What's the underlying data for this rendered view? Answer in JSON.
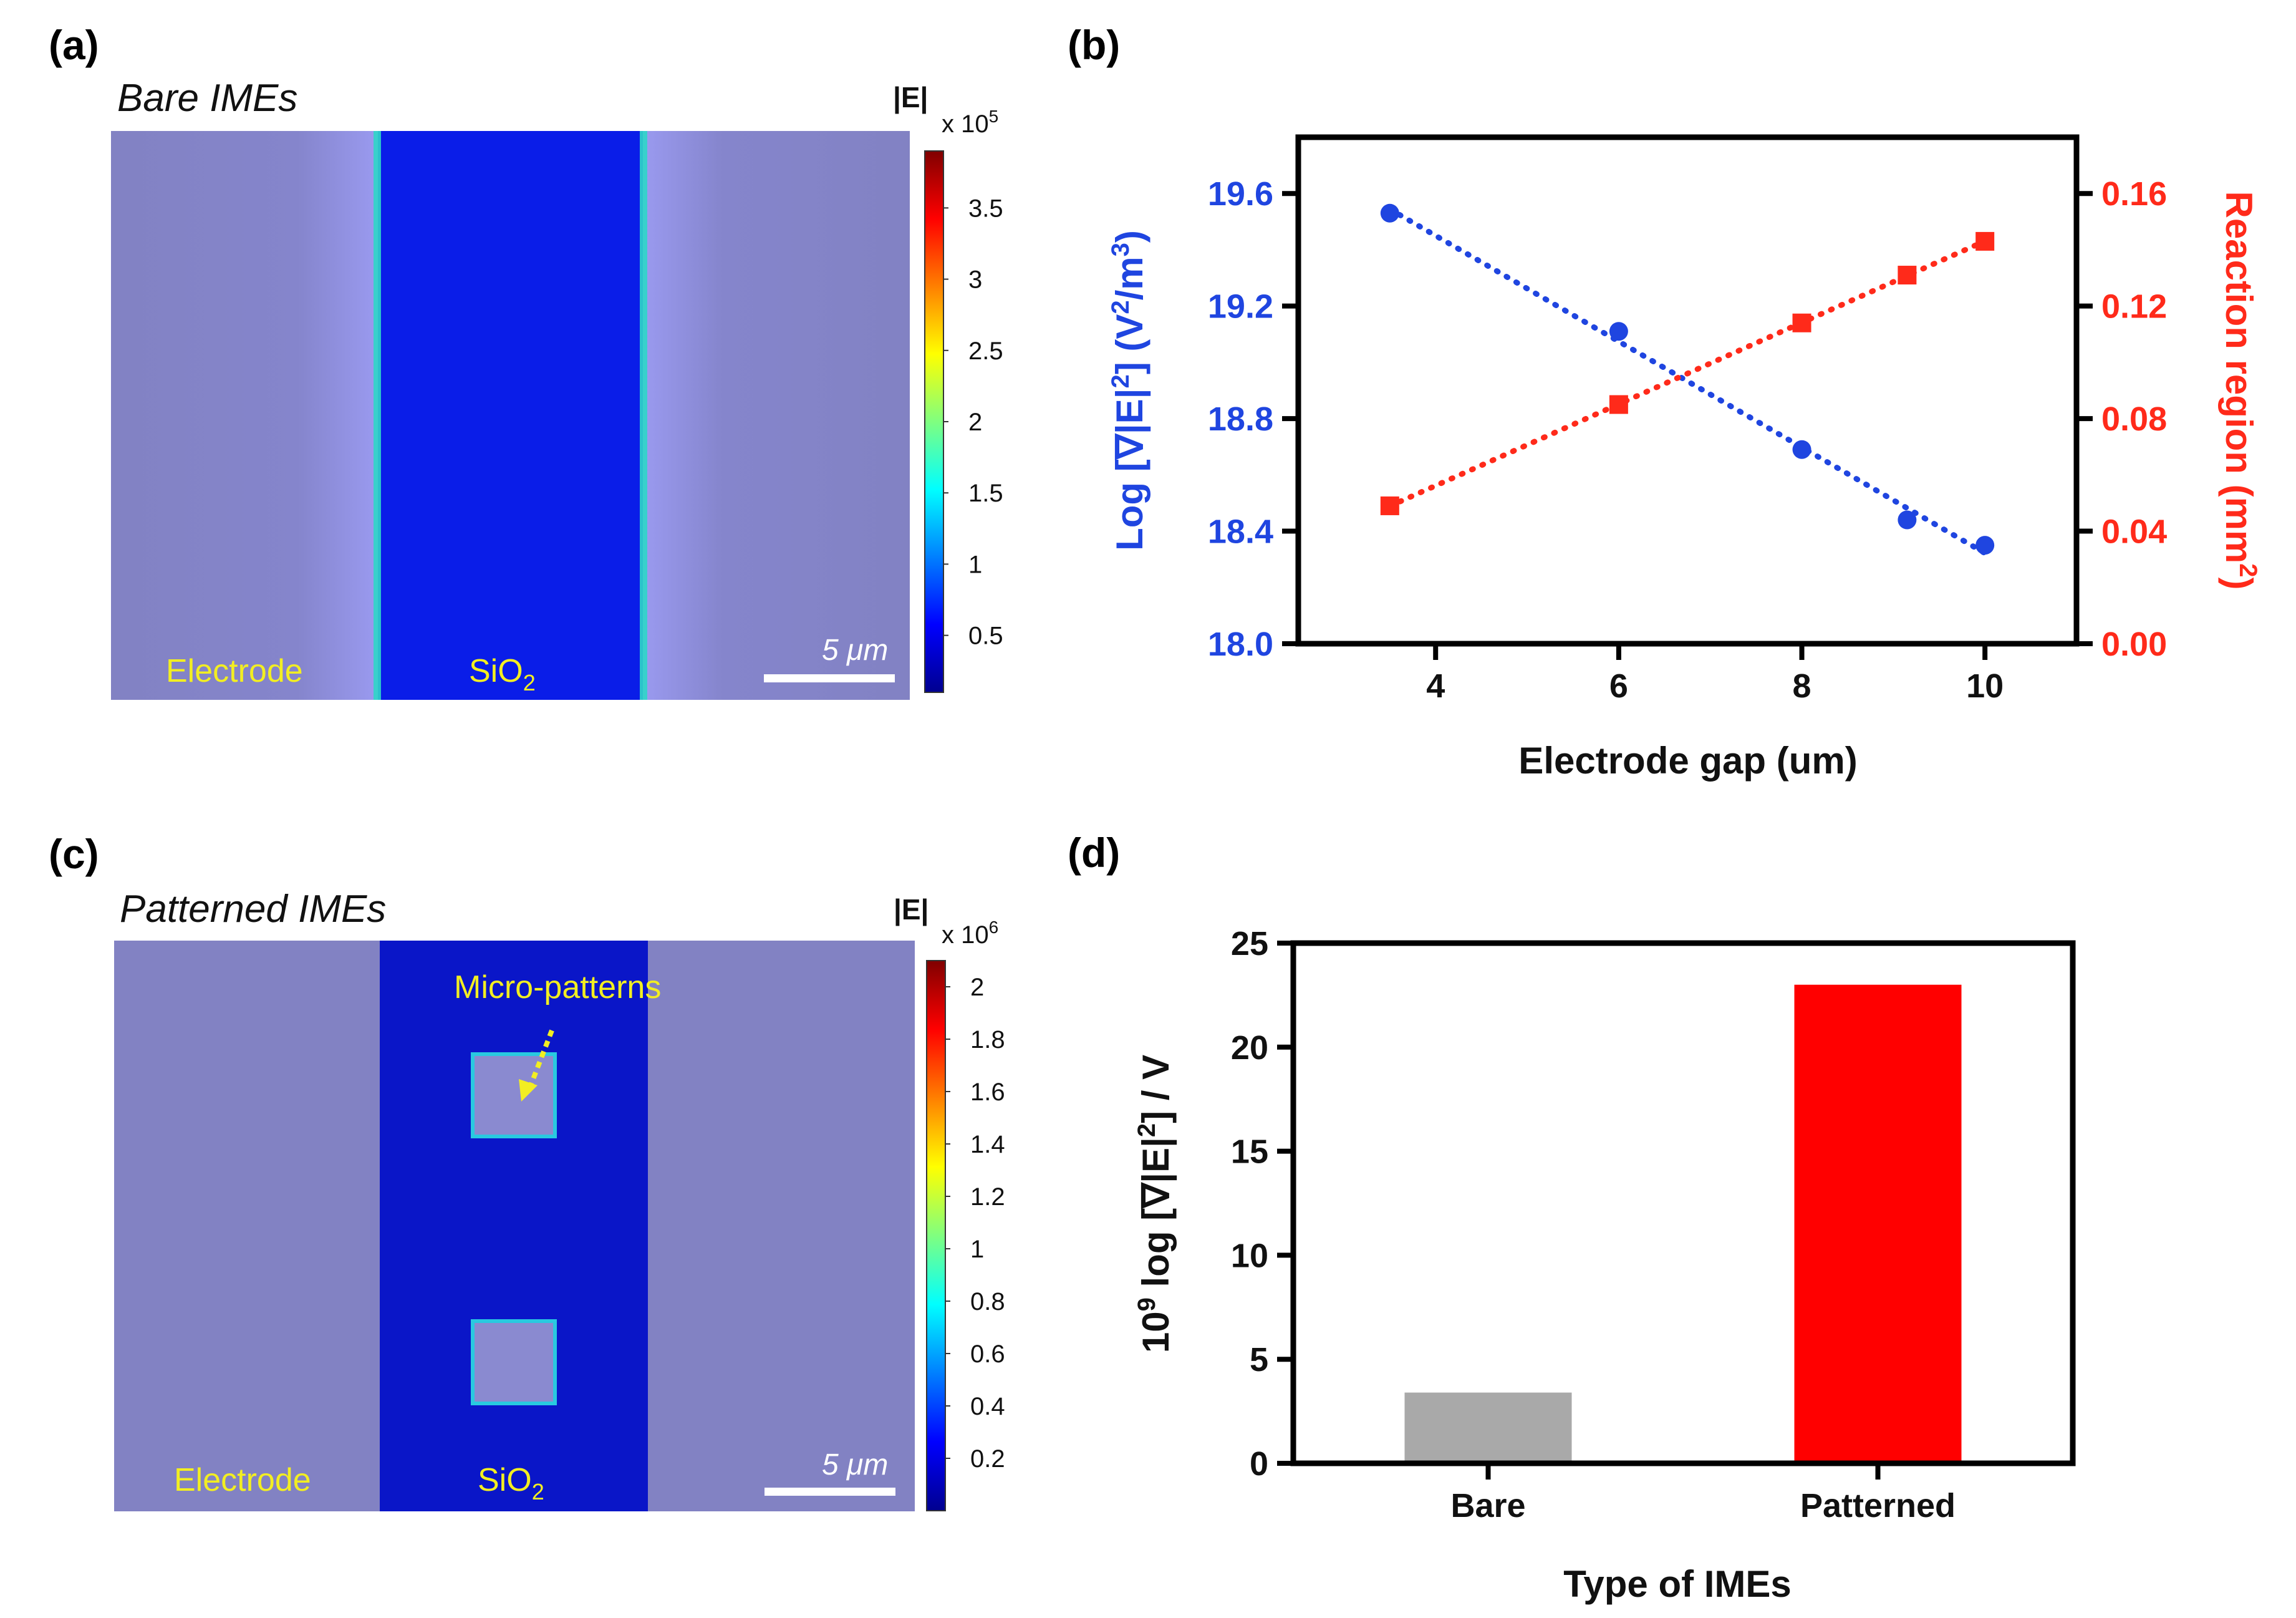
{
  "panels": {
    "a": {
      "label": "(a)",
      "title": "Bare IMEs",
      "colorbar": {
        "unit": "|E|",
        "exponent_base": "x 10",
        "exponent": "5",
        "ticks": [
          "3.5",
          "3",
          "2.5",
          "2",
          "1.5",
          "1",
          "0.5"
        ],
        "tick_values": [
          3.5,
          3,
          2.5,
          2,
          1.5,
          1,
          0.5
        ],
        "range": [
          0.1,
          3.9
        ]
      },
      "labels": {
        "electrode": "Electrode",
        "oxide": "SiO",
        "oxide_sub": "2"
      },
      "scalebar": "5 μm"
    },
    "c": {
      "label": "(c)",
      "title": "Patterned IMEs",
      "colorbar": {
        "unit": "|E|",
        "exponent_base": "x 10",
        "exponent": "6",
        "ticks": [
          "2",
          "1.8",
          "1.6",
          "1.4",
          "1.2",
          "1",
          "0.8",
          "0.6",
          "0.4",
          "0.2"
        ],
        "tick_values": [
          2,
          1.8,
          1.6,
          1.4,
          1.2,
          1,
          0.8,
          0.6,
          0.4,
          0.2
        ],
        "range": [
          0.0,
          2.1
        ]
      },
      "labels": {
        "electrode": "Electrode",
        "oxide": "SiO",
        "oxide_sub": "2",
        "annotation": "Micro-patterns"
      },
      "scalebar": "5 μm"
    },
    "b": {
      "label": "(b)"
    },
    "d": {
      "label": "(d)"
    }
  },
  "chart_data": [
    {
      "panel": "b",
      "type": "scatter",
      "xlabel": "Electrode gap (um)",
      "xlim": [
        2.5,
        11
      ],
      "xticks": [
        4,
        6,
        8,
        10
      ],
      "ylabel_left": "Log [∇|E|2] (V2/m3)",
      "ylabel_left_parts": {
        "a": "Log [∇|E|",
        "sup1": "2",
        "b": "] (V",
        "sup2": "2",
        "c": "/m",
        "sup3": "3",
        "d": ")"
      },
      "ylim_left": [
        18.0,
        19.8
      ],
      "yticks_left": [
        "18.0",
        "18.4",
        "18.8",
        "19.2",
        "19.6"
      ],
      "ylabel_right": "Reaction region (mm2)",
      "ylabel_right_parts": {
        "a": "Reaction region (mm",
        "sup": "2",
        "b": ")"
      },
      "ylim_right": [
        0.0,
        0.18
      ],
      "yticks_right": [
        "0.00",
        "0.04",
        "0.08",
        "0.12",
        "0.16"
      ],
      "series": [
        {
          "name": "Log [∇|E|2]",
          "axis": "left",
          "color": "#1f45e0",
          "marker": "circle",
          "x": [
            3.5,
            6,
            8,
            9.15,
            10
          ],
          "y": [
            19.53,
            19.11,
            18.69,
            18.44,
            18.35
          ]
        },
        {
          "name": "Reaction region",
          "axis": "right",
          "color": "#ff2a1a",
          "marker": "square",
          "x": [
            3.5,
            6,
            8,
            9.15,
            10
          ],
          "y": [
            0.049,
            0.085,
            0.114,
            0.131,
            0.143
          ]
        }
      ]
    },
    {
      "panel": "d",
      "type": "bar",
      "categories": [
        "Bare",
        "Patterned"
      ],
      "values": [
        3.4,
        23.0
      ],
      "colors": [
        "#a9a9a9",
        "#ff0000"
      ],
      "xlabel": "Type of IMEs",
      "ylabel": "109 log [∇|E|2] / V",
      "ylabel_parts": {
        "a": "10",
        "sup1": "9",
        "b": " log [∇|E|",
        "sup2": "2",
        "c": "] / V"
      },
      "ylim": [
        0,
        25
      ],
      "yticks": [
        "0",
        "5",
        "10",
        "15",
        "20",
        "25"
      ]
    }
  ]
}
